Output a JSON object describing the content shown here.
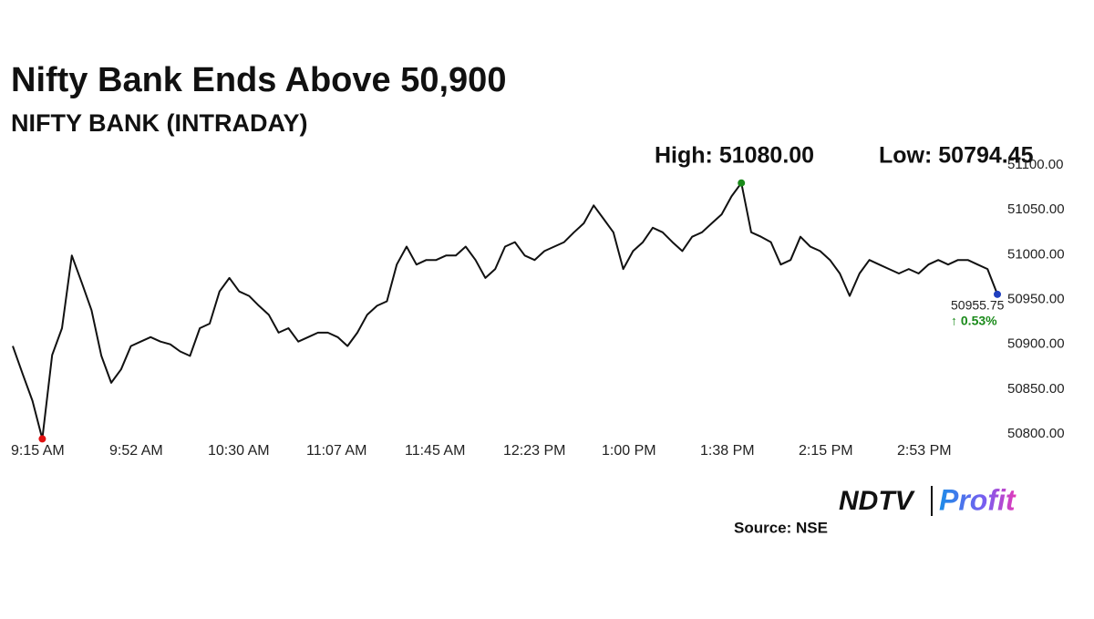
{
  "chart_data": {
    "type": "line",
    "title": "Nifty Bank Ends Above 50,900",
    "subtitle": "NIFTY BANK (INTRADAY)",
    "annotations": {
      "high": "High: 51080.00",
      "low": "Low: 50794.45",
      "change": "↑ 0.53%"
    },
    "categories": [
      "9:15 AM",
      null,
      null,
      null,
      null,
      null,
      null,
      null,
      null,
      null,
      "9:52 AM",
      null,
      null,
      null,
      null,
      null,
      null,
      null,
      null,
      null,
      "10:30 AM",
      null,
      null,
      null,
      null,
      null,
      null,
      null,
      null,
      null,
      "11:07 AM",
      null,
      null,
      null,
      null,
      null,
      null,
      null,
      null,
      null,
      "11:45 AM",
      null,
      null,
      null,
      null,
      null,
      null,
      null,
      null,
      null,
      "12:23 PM",
      null,
      null,
      null,
      null,
      null,
      null,
      null,
      null,
      null,
      "1:00 PM",
      null,
      null,
      null,
      null,
      null,
      null,
      null,
      null,
      null,
      "1:38 PM",
      null,
      null,
      null,
      null,
      null,
      null,
      null,
      null,
      null,
      "2:15 PM",
      null,
      null,
      null,
      null,
      null,
      null,
      null,
      null,
      null,
      "2:53 PM",
      null,
      null,
      null,
      null,
      null,
      null,
      null,
      null,
      null,
      null
    ],
    "values": [
      50898,
      50867,
      50837,
      50794.45,
      50888,
      50918,
      50999,
      50969,
      50938,
      50887,
      50857,
      50872,
      50898,
      50903,
      50908,
      50903,
      50900,
      50892,
      50887,
      50918,
      50923,
      50959,
      50974,
      50959,
      50954,
      50943,
      50933,
      50913,
      50918,
      50903,
      50908,
      50913,
      50913,
      50908,
      50898,
      50913,
      50933,
      50943,
      50948,
      50989,
      51009,
      50989,
      50994,
      50994,
      50999,
      50999,
      51009,
      50994,
      50974,
      50984,
      51009,
      51014,
      50999,
      50994,
      51004,
      51009,
      51014,
      51025,
      51035,
      51055,
      51040,
      51025,
      50984,
      51004,
      51014,
      51030,
      51025,
      51014,
      51004,
      51020,
      51025,
      51035,
      51045,
      51065,
      51080,
      51025,
      51020,
      51014,
      50989,
      50994,
      51020,
      51009,
      51004,
      50994,
      50979,
      50954,
      50979,
      50994,
      50989,
      50984,
      50979,
      50984,
      50979,
      50989,
      50994,
      50989,
      50994,
      50994,
      50989,
      50984,
      50955.75
    ],
    "color": "#111111",
    "markers": {
      "high_index": 74,
      "low_index": 3,
      "last_index": 100,
      "high_color": "#1a8a1a",
      "low_color": "#e01010",
      "last_color": "#1f3fbf",
      "change_color": "#1a8a1a"
    },
    "ylim": [
      50790,
      51110
    ],
    "yticks": [
      {
        "value": 50800,
        "label": "50800.00"
      },
      {
        "value": 50850,
        "label": "50850.00"
      },
      {
        "value": 50900,
        "label": "50900.00"
      },
      {
        "value": 50950,
        "label": "50950.00"
      },
      {
        "value": 51000,
        "label": "51000.00"
      },
      {
        "value": 51050,
        "label": "51050.00"
      },
      {
        "value": 51100,
        "label": "51100.00"
      }
    ],
    "grid": false
  },
  "footer": {
    "logo": [
      "NDTV",
      "Profit"
    ],
    "source": "Source: NSE"
  }
}
